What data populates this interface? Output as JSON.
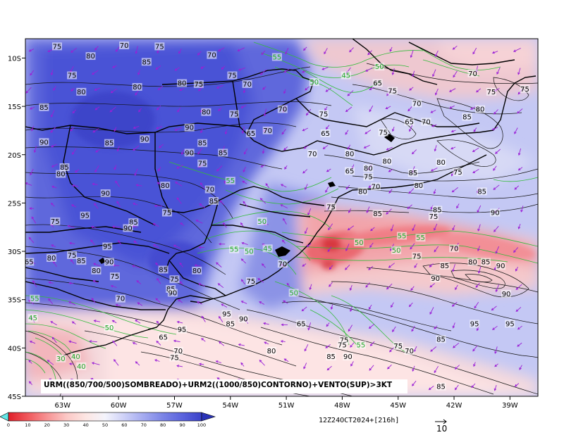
{
  "chart_data": {
    "type": "heatmap",
    "caption": "URM((850/700/500)SOMBREADO)+URM2((1000/850)CONTORNO)+VENTO(SUP)>3KT",
    "valid_time": "12Z24OCT2024+[216h]",
    "vector_reference": "10",
    "xlim": [
      -65,
      -37.5
    ],
    "ylim": [
      -45,
      -8
    ],
    "x_ticks": [
      {
        "value": -63,
        "label": "63W"
      },
      {
        "value": -60,
        "label": "60W"
      },
      {
        "value": -57,
        "label": "57W"
      },
      {
        "value": -54,
        "label": "54W"
      },
      {
        "value": -51,
        "label": "51W"
      },
      {
        "value": -48,
        "label": "48W"
      },
      {
        "value": -45,
        "label": "45W"
      },
      {
        "value": -42,
        "label": "42W"
      },
      {
        "value": -39,
        "label": "39W"
      }
    ],
    "y_ticks": [
      {
        "value": -10,
        "label": "10S"
      },
      {
        "value": -15,
        "label": "15S"
      },
      {
        "value": -20,
        "label": "20S"
      },
      {
        "value": -25,
        "label": "25S"
      },
      {
        "value": -30,
        "label": "30S"
      },
      {
        "value": -35,
        "label": "35S"
      },
      {
        "value": -40,
        "label": "40S"
      },
      {
        "value": -45,
        "label": "45S"
      }
    ],
    "colorbar": {
      "ticks": [
        "0",
        "10",
        "20",
        "30",
        "40",
        "50",
        "60",
        "70",
        "80",
        "90",
        "100"
      ],
      "colors": [
        "#e01f2a",
        "#f0585c",
        "#f79394",
        "#fbc7c5",
        "#fde6e3",
        "#f4f4fc",
        "#cdd0f7",
        "#a4aaf0",
        "#7b84e6",
        "#5b63dd",
        "#3b42c9"
      ]
    },
    "black_contour_labels": [
      {
        "lon": -63.3,
        "lat": -8.9,
        "text": "75"
      },
      {
        "lon": -61.5,
        "lat": -9.9,
        "text": "80"
      },
      {
        "lon": -59.7,
        "lat": -8.8,
        "text": "70"
      },
      {
        "lon": -57.8,
        "lat": -8.9,
        "text": "75"
      },
      {
        "lon": -58.5,
        "lat": -10.5,
        "text": "85"
      },
      {
        "lon": -55.0,
        "lat": -9.8,
        "text": "70"
      },
      {
        "lon": -62.5,
        "lat": -11.9,
        "text": "75"
      },
      {
        "lon": -62.0,
        "lat": -13.6,
        "text": "80"
      },
      {
        "lon": -59.0,
        "lat": -13.1,
        "text": "80"
      },
      {
        "lon": -56.6,
        "lat": -12.7,
        "text": "80"
      },
      {
        "lon": -55.7,
        "lat": -12.8,
        "text": "75"
      },
      {
        "lon": -53.9,
        "lat": -11.9,
        "text": "75"
      },
      {
        "lon": -53.1,
        "lat": -12.8,
        "text": "70"
      },
      {
        "lon": -64.0,
        "lat": -15.2,
        "text": "85"
      },
      {
        "lon": -55.3,
        "lat": -15.7,
        "text": "80"
      },
      {
        "lon": -53.8,
        "lat": -15.9,
        "text": "75"
      },
      {
        "lon": -51.2,
        "lat": -15.4,
        "text": "70"
      },
      {
        "lon": -49.0,
        "lat": -15.9,
        "text": "75"
      },
      {
        "lon": -56.2,
        "lat": -17.3,
        "text": "90"
      },
      {
        "lon": -52.0,
        "lat": -17.6,
        "text": "70"
      },
      {
        "lon": -52.9,
        "lat": -17.9,
        "text": "65"
      },
      {
        "lon": -48.9,
        "lat": -17.9,
        "text": "65"
      },
      {
        "lon": -45.8,
        "lat": -17.8,
        "text": "75"
      },
      {
        "lon": -44.4,
        "lat": -16.7,
        "text": "65"
      },
      {
        "lon": -43.5,
        "lat": -16.7,
        "text": "70"
      },
      {
        "lon": -41.3,
        "lat": -16.2,
        "text": "85"
      },
      {
        "lon": -40.6,
        "lat": -15.4,
        "text": "80"
      },
      {
        "lon": -44.0,
        "lat": -14.8,
        "text": "70"
      },
      {
        "lon": -45.3,
        "lat": -13.5,
        "text": "75"
      },
      {
        "lon": -46.1,
        "lat": -12.7,
        "text": "65"
      },
      {
        "lon": -41.0,
        "lat": -11.7,
        "text": "70"
      },
      {
        "lon": -40.0,
        "lat": -13.6,
        "text": "75"
      },
      {
        "lon": -38.2,
        "lat": -13.3,
        "text": "75"
      },
      {
        "lon": -64.0,
        "lat": -18.8,
        "text": "90"
      },
      {
        "lon": -60.5,
        "lat": -18.9,
        "text": "85"
      },
      {
        "lon": -58.6,
        "lat": -18.5,
        "text": "90"
      },
      {
        "lon": -55.5,
        "lat": -18.9,
        "text": "85"
      },
      {
        "lon": -56.2,
        "lat": -19.9,
        "text": "90"
      },
      {
        "lon": -54.4,
        "lat": -19.9,
        "text": "85"
      },
      {
        "lon": -55.5,
        "lat": -21.0,
        "text": "75"
      },
      {
        "lon": -62.9,
        "lat": -21.4,
        "text": "85"
      },
      {
        "lon": -63.1,
        "lat": -22.1,
        "text": "80"
      },
      {
        "lon": -60.7,
        "lat": -24.1,
        "text": "90"
      },
      {
        "lon": -57.5,
        "lat": -23.3,
        "text": "80"
      },
      {
        "lon": -55.1,
        "lat": -23.7,
        "text": "70"
      },
      {
        "lon": -54.9,
        "lat": -24.9,
        "text": "85"
      },
      {
        "lon": -49.6,
        "lat": -20.0,
        "text": "70"
      },
      {
        "lon": -47.6,
        "lat": -20.0,
        "text": "80"
      },
      {
        "lon": -47.6,
        "lat": -21.8,
        "text": "65"
      },
      {
        "lon": -46.6,
        "lat": -21.5,
        "text": "80"
      },
      {
        "lon": -45.6,
        "lat": -20.8,
        "text": "80"
      },
      {
        "lon": -44.2,
        "lat": -22.0,
        "text": "85"
      },
      {
        "lon": -42.7,
        "lat": -20.9,
        "text": "80"
      },
      {
        "lon": -41.8,
        "lat": -21.9,
        "text": "75"
      },
      {
        "lon": -46.6,
        "lat": -22.4,
        "text": "75"
      },
      {
        "lon": -46.2,
        "lat": -23.4,
        "text": "70"
      },
      {
        "lon": -46.9,
        "lat": -23.9,
        "text": "80"
      },
      {
        "lon": -43.9,
        "lat": -23.3,
        "text": "80"
      },
      {
        "lon": -40.5,
        "lat": -23.9,
        "text": "85"
      },
      {
        "lon": -48.6,
        "lat": -25.5,
        "text": "75"
      },
      {
        "lon": -46.1,
        "lat": -26.2,
        "text": "85"
      },
      {
        "lon": -42.9,
        "lat": -25.8,
        "text": "85"
      },
      {
        "lon": -43.1,
        "lat": -26.5,
        "text": "75"
      },
      {
        "lon": -39.8,
        "lat": -26.1,
        "text": "90"
      },
      {
        "lon": -61.8,
        "lat": -26.4,
        "text": "95"
      },
      {
        "lon": -59.2,
        "lat": -27.1,
        "text": "85"
      },
      {
        "lon": -59.5,
        "lat": -27.7,
        "text": "90"
      },
      {
        "lon": -57.4,
        "lat": -26.1,
        "text": "75"
      },
      {
        "lon": -63.4,
        "lat": -27.0,
        "text": "75"
      },
      {
        "lon": -60.6,
        "lat": -29.6,
        "text": "95"
      },
      {
        "lon": -62.5,
        "lat": -30.5,
        "text": "75"
      },
      {
        "lon": -63.6,
        "lat": -30.8,
        "text": "80"
      },
      {
        "lon": -64.8,
        "lat": -31.2,
        "text": "65"
      },
      {
        "lon": -62.0,
        "lat": -31.1,
        "text": "85"
      },
      {
        "lon": -60.5,
        "lat": -31.2,
        "text": "90"
      },
      {
        "lon": -61.2,
        "lat": -32.1,
        "text": "80"
      },
      {
        "lon": -60.2,
        "lat": -32.7,
        "text": "75"
      },
      {
        "lon": -57.6,
        "lat": -32.0,
        "text": "85"
      },
      {
        "lon": -55.8,
        "lat": -32.1,
        "text": "80"
      },
      {
        "lon": -57.0,
        "lat": -33.0,
        "text": "75"
      },
      {
        "lon": -57.2,
        "lat": -34.0,
        "text": "85"
      },
      {
        "lon": -57.1,
        "lat": -34.4,
        "text": "90"
      },
      {
        "lon": -52.9,
        "lat": -33.2,
        "text": "75"
      },
      {
        "lon": -51.2,
        "lat": -31.4,
        "text": "70"
      },
      {
        "lon": -44.0,
        "lat": -30.6,
        "text": "75"
      },
      {
        "lon": -42.0,
        "lat": -29.8,
        "text": "70"
      },
      {
        "lon": -42.5,
        "lat": -31.6,
        "text": "85"
      },
      {
        "lon": -41.0,
        "lat": -31.2,
        "text": "80"
      },
      {
        "lon": -40.3,
        "lat": -31.2,
        "text": "85"
      },
      {
        "lon": -39.5,
        "lat": -31.6,
        "text": "90"
      },
      {
        "lon": -43.0,
        "lat": -32.9,
        "text": "90"
      },
      {
        "lon": -39.2,
        "lat": -34.5,
        "text": "90"
      },
      {
        "lon": -59.9,
        "lat": -35.0,
        "text": "70"
      },
      {
        "lon": -54.2,
        "lat": -36.6,
        "text": "95"
      },
      {
        "lon": -54.0,
        "lat": -37.6,
        "text": "85"
      },
      {
        "lon": -53.3,
        "lat": -37.1,
        "text": "90"
      },
      {
        "lon": -56.6,
        "lat": -38.2,
        "text": "95"
      },
      {
        "lon": -50.2,
        "lat": -37.6,
        "text": "65"
      },
      {
        "lon": -47.9,
        "lat": -39.3,
        "text": "75"
      },
      {
        "lon": -48.0,
        "lat": -39.8,
        "text": "75"
      },
      {
        "lon": -57.6,
        "lat": -39.0,
        "text": "65"
      },
      {
        "lon": -56.8,
        "lat": -40.4,
        "text": "70"
      },
      {
        "lon": -57.0,
        "lat": -41.1,
        "text": "75"
      },
      {
        "lon": -51.8,
        "lat": -40.4,
        "text": "80"
      },
      {
        "lon": -48.6,
        "lat": -41.0,
        "text": "85"
      },
      {
        "lon": -47.7,
        "lat": -41.0,
        "text": "90"
      },
      {
        "lon": -45.0,
        "lat": -39.9,
        "text": "75"
      },
      {
        "lon": -44.4,
        "lat": -40.4,
        "text": "70"
      },
      {
        "lon": -42.7,
        "lat": -39.2,
        "text": "85"
      },
      {
        "lon": -40.9,
        "lat": -37.6,
        "text": "95"
      },
      {
        "lon": -39.0,
        "lat": -37.6,
        "text": "95"
      },
      {
        "lon": -42.7,
        "lat": -44.1,
        "text": "85"
      }
    ],
    "green_contour_labels": [
      {
        "lon": -51.5,
        "lat": -10.0,
        "text": "55"
      },
      {
        "lon": -47.8,
        "lat": -11.9,
        "text": "45"
      },
      {
        "lon": -49.5,
        "lat": -12.6,
        "text": "50"
      },
      {
        "lon": -46.0,
        "lat": -11.0,
        "text": "50"
      },
      {
        "lon": -54.0,
        "lat": -22.8,
        "text": "55"
      },
      {
        "lon": -52.3,
        "lat": -27.0,
        "text": "50"
      },
      {
        "lon": -53.8,
        "lat": -29.9,
        "text": "55"
      },
      {
        "lon": -53.0,
        "lat": -30.1,
        "text": "50"
      },
      {
        "lon": -52.0,
        "lat": -29.8,
        "text": "45"
      },
      {
        "lon": -47.1,
        "lat": -29.2,
        "text": "50"
      },
      {
        "lon": -44.8,
        "lat": -28.5,
        "text": "55"
      },
      {
        "lon": -43.8,
        "lat": -28.7,
        "text": "55"
      },
      {
        "lon": -45.1,
        "lat": -30.0,
        "text": "50"
      },
      {
        "lon": -50.6,
        "lat": -34.4,
        "text": "50"
      },
      {
        "lon": -64.5,
        "lat": -35.0,
        "text": "55"
      },
      {
        "lon": -64.6,
        "lat": -37.0,
        "text": "45"
      },
      {
        "lon": -60.5,
        "lat": -38.0,
        "text": "50"
      },
      {
        "lon": -47.0,
        "lat": -39.8,
        "text": "55"
      },
      {
        "lon": -63.1,
        "lat": -41.2,
        "text": "30"
      },
      {
        "lon": -62.3,
        "lat": -41.0,
        "text": "40"
      },
      {
        "lon": -62.0,
        "lat": -42.0,
        "text": "40"
      }
    ]
  }
}
